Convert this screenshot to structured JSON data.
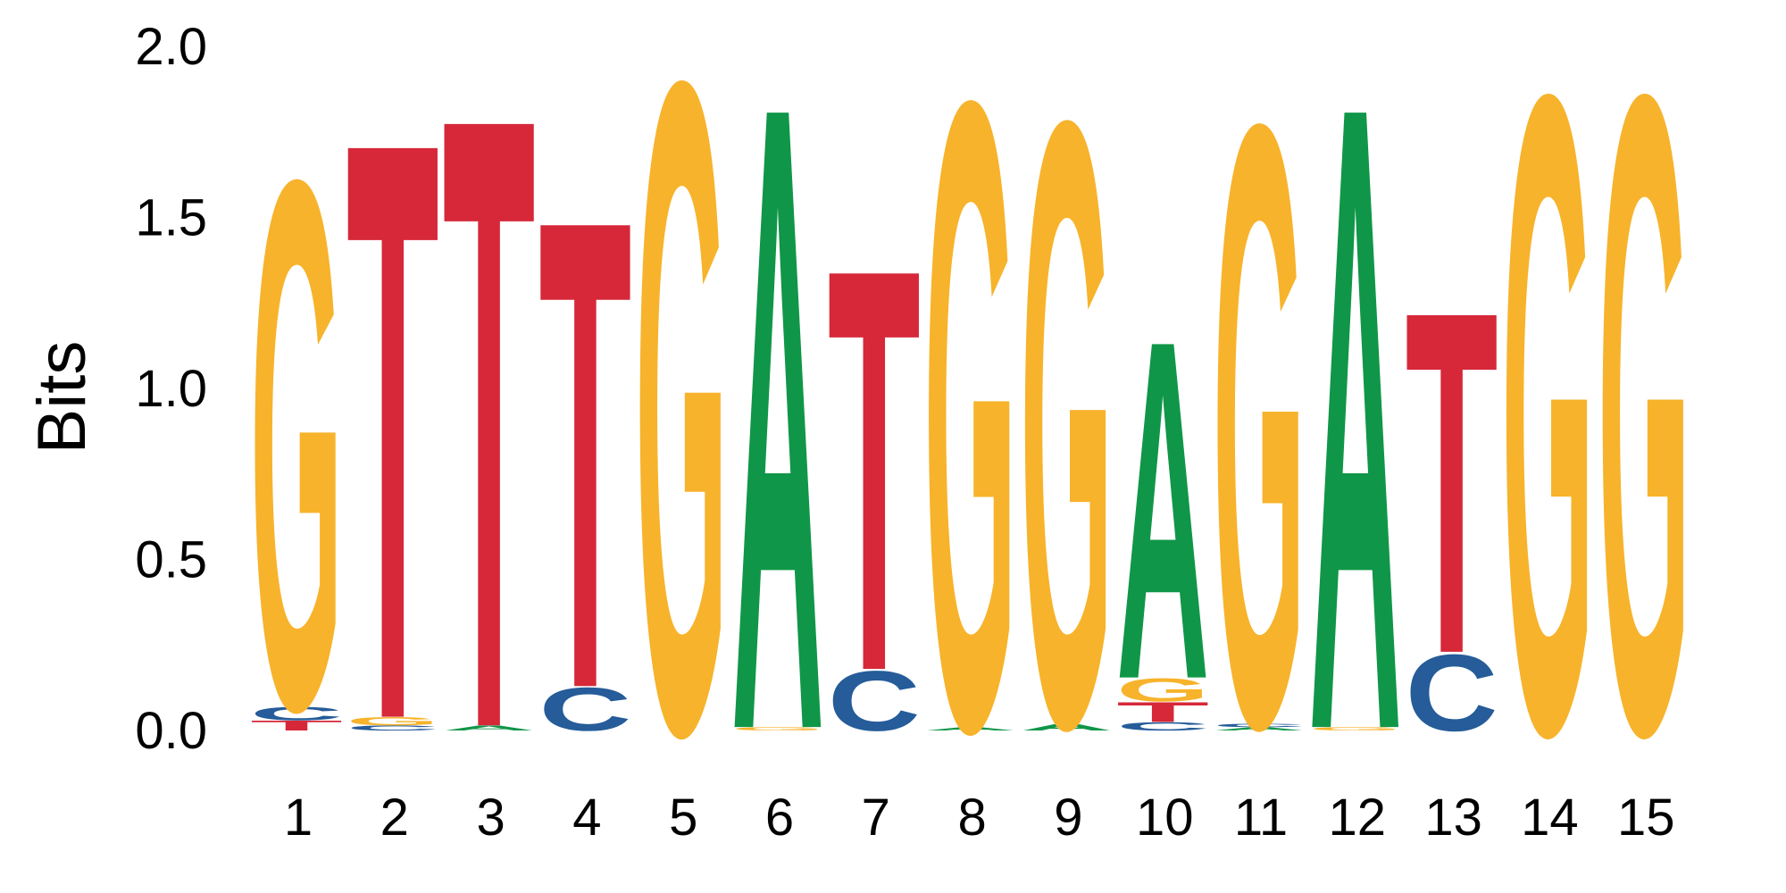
{
  "colors": {
    "A": "#109648",
    "C": "#255c99",
    "G": "#f7b32b",
    "T": "#d62839"
  },
  "chart_data": {
    "type": "sequence-logo",
    "ylabel": "Bits",
    "ylim": [
      0,
      2.0
    ],
    "yticks": [
      "0.0",
      "0.5",
      "1.0",
      "1.5",
      "2.0"
    ],
    "positions": [
      {
        "label": "1",
        "stack": [
          {
            "letter": "T",
            "bits": 0.03
          },
          {
            "letter": "C",
            "bits": 0.04
          },
          {
            "letter": "G",
            "bits": 1.59
          }
        ]
      },
      {
        "label": "2",
        "stack": [
          {
            "letter": "C",
            "bits": 0.015
          },
          {
            "letter": "G",
            "bits": 0.025
          },
          {
            "letter": "T",
            "bits": 1.74
          }
        ]
      },
      {
        "label": "3",
        "stack": [
          {
            "letter": "A",
            "bits": 0.015
          },
          {
            "letter": "T",
            "bits": 1.84
          }
        ]
      },
      {
        "label": "4",
        "stack": [
          {
            "letter": "C",
            "bits": 0.13
          },
          {
            "letter": "T",
            "bits": 1.41
          }
        ]
      },
      {
        "label": "5",
        "stack": [
          {
            "letter": "G",
            "bits": 1.96
          }
        ]
      },
      {
        "label": "6",
        "stack": [
          {
            "letter": "G",
            "bits": 0.01
          },
          {
            "letter": "A",
            "bits": 1.88
          }
        ]
      },
      {
        "label": "7",
        "stack": [
          {
            "letter": "C",
            "bits": 0.18
          },
          {
            "letter": "T",
            "bits": 1.21
          }
        ]
      },
      {
        "label": "8",
        "stack": [
          {
            "letter": "A",
            "bits": 0.01
          },
          {
            "letter": "G",
            "bits": 1.89
          }
        ]
      },
      {
        "label": "9",
        "stack": [
          {
            "letter": "A",
            "bits": 0.02
          },
          {
            "letter": "G",
            "bits": 1.82
          }
        ]
      },
      {
        "label": "10",
        "stack": [
          {
            "letter": "C",
            "bits": 0.025
          },
          {
            "letter": "T",
            "bits": 0.06
          },
          {
            "letter": "G",
            "bits": 0.07
          },
          {
            "letter": "A",
            "bits": 1.02
          }
        ]
      },
      {
        "label": "11",
        "stack": [
          {
            "letter": "A",
            "bits": 0.01
          },
          {
            "letter": "C",
            "bits": 0.01
          },
          {
            "letter": "G",
            "bits": 1.81
          }
        ]
      },
      {
        "label": "12",
        "stack": [
          {
            "letter": "G",
            "bits": 0.01
          },
          {
            "letter": "A",
            "bits": 1.88
          }
        ]
      },
      {
        "label": "13",
        "stack": [
          {
            "letter": "C",
            "bits": 0.23
          },
          {
            "letter": "T",
            "bits": 1.03
          }
        ]
      },
      {
        "label": "14",
        "stack": [
          {
            "letter": "G",
            "bits": 1.92
          }
        ]
      },
      {
        "label": "15",
        "stack": [
          {
            "letter": "G",
            "bits": 1.92
          }
        ]
      }
    ]
  }
}
